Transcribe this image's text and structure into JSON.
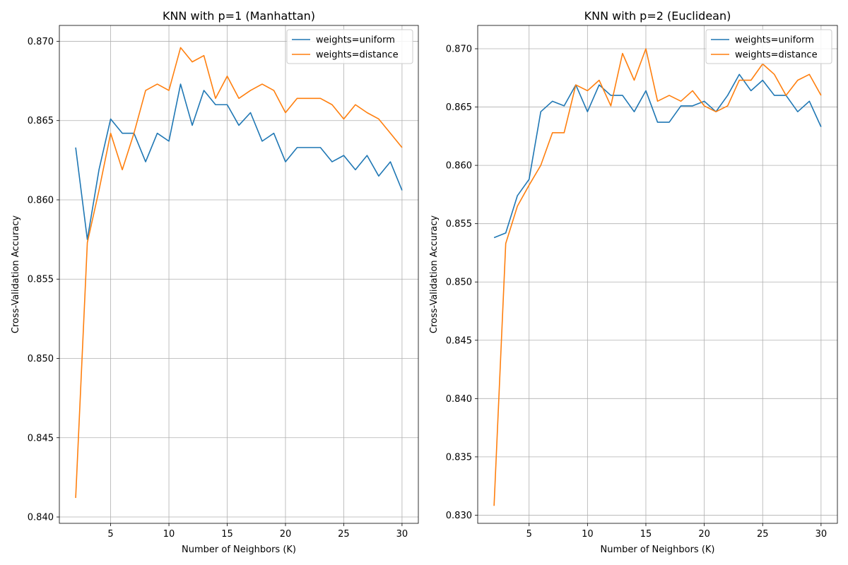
{
  "figure": {
    "colors": {
      "uniform": "#1f77b4",
      "distance": "#ff7f0e",
      "grid": "#b0b0b0",
      "axis": "#000000"
    }
  },
  "chart_data": [
    {
      "type": "line",
      "title": "KNN with p=1 (Manhattan)",
      "xlabel": "Number of Neighbors (K)",
      "ylabel": "Cross-Validation Accuracy",
      "xlim": [
        0.6,
        31.4
      ],
      "ylim": [
        0.8396,
        0.871
      ],
      "xticks": [
        5,
        10,
        15,
        20,
        25,
        30
      ],
      "yticks": [
        0.84,
        0.845,
        0.85,
        0.855,
        0.86,
        0.865,
        0.87
      ],
      "ytick_labels": [
        "0.840",
        "0.845",
        "0.850",
        "0.855",
        "0.860",
        "0.865",
        "0.870"
      ],
      "grid": true,
      "legend": "top-right",
      "x": [
        2,
        3,
        4,
        5,
        6,
        7,
        8,
        9,
        10,
        11,
        12,
        13,
        14,
        15,
        16,
        17,
        18,
        19,
        20,
        21,
        22,
        23,
        24,
        25,
        26,
        27,
        28,
        29,
        30
      ],
      "series": [
        {
          "name": "weights=uniform",
          "color_key": "uniform",
          "values": [
            0.8633,
            0.8575,
            0.8619,
            0.8651,
            0.8642,
            0.8642,
            0.8624,
            0.8642,
            0.8637,
            0.8673,
            0.8647,
            0.8669,
            0.866,
            0.866,
            0.8647,
            0.8655,
            0.8637,
            0.8642,
            0.8624,
            0.8633,
            0.8633,
            0.8633,
            0.8624,
            0.8628,
            0.8619,
            0.8628,
            0.8615,
            0.8624,
            0.8606
          ]
        },
        {
          "name": "weights=distance",
          "color_key": "distance",
          "values": [
            0.8412,
            0.8573,
            0.8606,
            0.8642,
            0.8619,
            0.8642,
            0.8669,
            0.8673,
            0.8669,
            0.8696,
            0.8687,
            0.8691,
            0.8664,
            0.8678,
            0.8664,
            0.8669,
            0.8673,
            0.8669,
            0.8655,
            0.8664,
            0.8664,
            0.8664,
            0.866,
            0.8651,
            0.866,
            0.8655,
            0.8651,
            0.8642,
            0.8633
          ]
        }
      ]
    },
    {
      "type": "line",
      "title": "KNN with p=2 (Euclidean)",
      "xlabel": "Number of Neighbors (K)",
      "ylabel": "Cross-Validation Accuracy",
      "xlim": [
        0.6,
        31.4
      ],
      "ylim": [
        0.8293,
        0.872
      ],
      "xticks": [
        5,
        10,
        15,
        20,
        25,
        30
      ],
      "yticks": [
        0.83,
        0.835,
        0.84,
        0.845,
        0.85,
        0.855,
        0.86,
        0.865,
        0.87
      ],
      "ytick_labels": [
        "0.830",
        "0.835",
        "0.840",
        "0.845",
        "0.850",
        "0.855",
        "0.860",
        "0.865",
        "0.870"
      ],
      "grid": true,
      "legend": "top-right",
      "x": [
        2,
        3,
        4,
        5,
        6,
        7,
        8,
        9,
        10,
        11,
        12,
        13,
        14,
        15,
        16,
        17,
        18,
        19,
        20,
        21,
        22,
        23,
        24,
        25,
        26,
        27,
        28,
        29,
        30
      ],
      "series": [
        {
          "name": "weights=uniform",
          "color_key": "uniform",
          "values": [
            0.8538,
            0.8542,
            0.8574,
            0.8588,
            0.8646,
            0.8655,
            0.8651,
            0.8669,
            0.8646,
            0.8669,
            0.866,
            0.866,
            0.8646,
            0.8664,
            0.8637,
            0.8637,
            0.8651,
            0.8651,
            0.8655,
            0.8646,
            0.866,
            0.8678,
            0.8664,
            0.8673,
            0.866,
            0.866,
            0.8646,
            0.8655,
            0.8633
          ]
        },
        {
          "name": "weights=distance",
          "color_key": "distance",
          "values": [
            0.8308,
            0.8533,
            0.8565,
            0.8583,
            0.86,
            0.8628,
            0.8628,
            0.8669,
            0.8664,
            0.8673,
            0.8651,
            0.8696,
            0.8673,
            0.87,
            0.8655,
            0.866,
            0.8655,
            0.8664,
            0.8651,
            0.8646,
            0.8651,
            0.8673,
            0.8673,
            0.8687,
            0.8678,
            0.866,
            0.8673,
            0.8678,
            0.866
          ]
        }
      ]
    }
  ]
}
